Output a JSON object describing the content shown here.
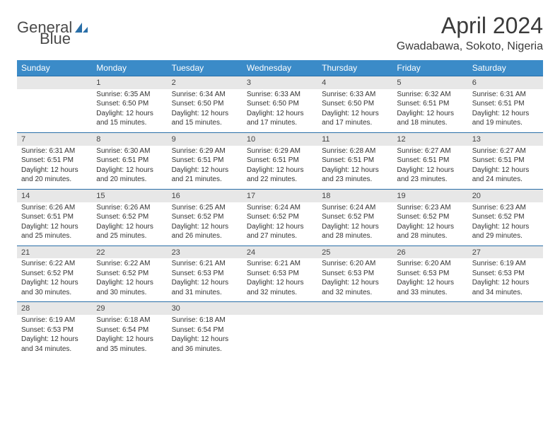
{
  "logo": {
    "text1": "General",
    "text2": "Blue"
  },
  "title": "April 2024",
  "location": "Gwadabawa, Sokoto, Nigeria",
  "colors": {
    "header_bg": "#3b8bc8",
    "header_fg": "#ffffff",
    "daynum_bg": "#e7e7e7",
    "rule": "#2a6fa8"
  },
  "weekdays": [
    "Sunday",
    "Monday",
    "Tuesday",
    "Wednesday",
    "Thursday",
    "Friday",
    "Saturday"
  ],
  "weeks": [
    [
      null,
      {
        "n": "1",
        "sr": "6:35 AM",
        "ss": "6:50 PM",
        "dl": "12 hours and 15 minutes."
      },
      {
        "n": "2",
        "sr": "6:34 AM",
        "ss": "6:50 PM",
        "dl": "12 hours and 15 minutes."
      },
      {
        "n": "3",
        "sr": "6:33 AM",
        "ss": "6:50 PM",
        "dl": "12 hours and 17 minutes."
      },
      {
        "n": "4",
        "sr": "6:33 AM",
        "ss": "6:50 PM",
        "dl": "12 hours and 17 minutes."
      },
      {
        "n": "5",
        "sr": "6:32 AM",
        "ss": "6:51 PM",
        "dl": "12 hours and 18 minutes."
      },
      {
        "n": "6",
        "sr": "6:31 AM",
        "ss": "6:51 PM",
        "dl": "12 hours and 19 minutes."
      }
    ],
    [
      {
        "n": "7",
        "sr": "6:31 AM",
        "ss": "6:51 PM",
        "dl": "12 hours and 20 minutes."
      },
      {
        "n": "8",
        "sr": "6:30 AM",
        "ss": "6:51 PM",
        "dl": "12 hours and 20 minutes."
      },
      {
        "n": "9",
        "sr": "6:29 AM",
        "ss": "6:51 PM",
        "dl": "12 hours and 21 minutes."
      },
      {
        "n": "10",
        "sr": "6:29 AM",
        "ss": "6:51 PM",
        "dl": "12 hours and 22 minutes."
      },
      {
        "n": "11",
        "sr": "6:28 AM",
        "ss": "6:51 PM",
        "dl": "12 hours and 23 minutes."
      },
      {
        "n": "12",
        "sr": "6:27 AM",
        "ss": "6:51 PM",
        "dl": "12 hours and 23 minutes."
      },
      {
        "n": "13",
        "sr": "6:27 AM",
        "ss": "6:51 PM",
        "dl": "12 hours and 24 minutes."
      }
    ],
    [
      {
        "n": "14",
        "sr": "6:26 AM",
        "ss": "6:51 PM",
        "dl": "12 hours and 25 minutes."
      },
      {
        "n": "15",
        "sr": "6:26 AM",
        "ss": "6:52 PM",
        "dl": "12 hours and 25 minutes."
      },
      {
        "n": "16",
        "sr": "6:25 AM",
        "ss": "6:52 PM",
        "dl": "12 hours and 26 minutes."
      },
      {
        "n": "17",
        "sr": "6:24 AM",
        "ss": "6:52 PM",
        "dl": "12 hours and 27 minutes."
      },
      {
        "n": "18",
        "sr": "6:24 AM",
        "ss": "6:52 PM",
        "dl": "12 hours and 28 minutes."
      },
      {
        "n": "19",
        "sr": "6:23 AM",
        "ss": "6:52 PM",
        "dl": "12 hours and 28 minutes."
      },
      {
        "n": "20",
        "sr": "6:23 AM",
        "ss": "6:52 PM",
        "dl": "12 hours and 29 minutes."
      }
    ],
    [
      {
        "n": "21",
        "sr": "6:22 AM",
        "ss": "6:52 PM",
        "dl": "12 hours and 30 minutes."
      },
      {
        "n": "22",
        "sr": "6:22 AM",
        "ss": "6:52 PM",
        "dl": "12 hours and 30 minutes."
      },
      {
        "n": "23",
        "sr": "6:21 AM",
        "ss": "6:53 PM",
        "dl": "12 hours and 31 minutes."
      },
      {
        "n": "24",
        "sr": "6:21 AM",
        "ss": "6:53 PM",
        "dl": "12 hours and 32 minutes."
      },
      {
        "n": "25",
        "sr": "6:20 AM",
        "ss": "6:53 PM",
        "dl": "12 hours and 32 minutes."
      },
      {
        "n": "26",
        "sr": "6:20 AM",
        "ss": "6:53 PM",
        "dl": "12 hours and 33 minutes."
      },
      {
        "n": "27",
        "sr": "6:19 AM",
        "ss": "6:53 PM",
        "dl": "12 hours and 34 minutes."
      }
    ],
    [
      {
        "n": "28",
        "sr": "6:19 AM",
        "ss": "6:53 PM",
        "dl": "12 hours and 34 minutes."
      },
      {
        "n": "29",
        "sr": "6:18 AM",
        "ss": "6:54 PM",
        "dl": "12 hours and 35 minutes."
      },
      {
        "n": "30",
        "sr": "6:18 AM",
        "ss": "6:54 PM",
        "dl": "12 hours and 36 minutes."
      },
      null,
      null,
      null,
      null
    ]
  ],
  "labels": {
    "sunrise": "Sunrise:",
    "sunset": "Sunset:",
    "daylight": "Daylight:"
  }
}
